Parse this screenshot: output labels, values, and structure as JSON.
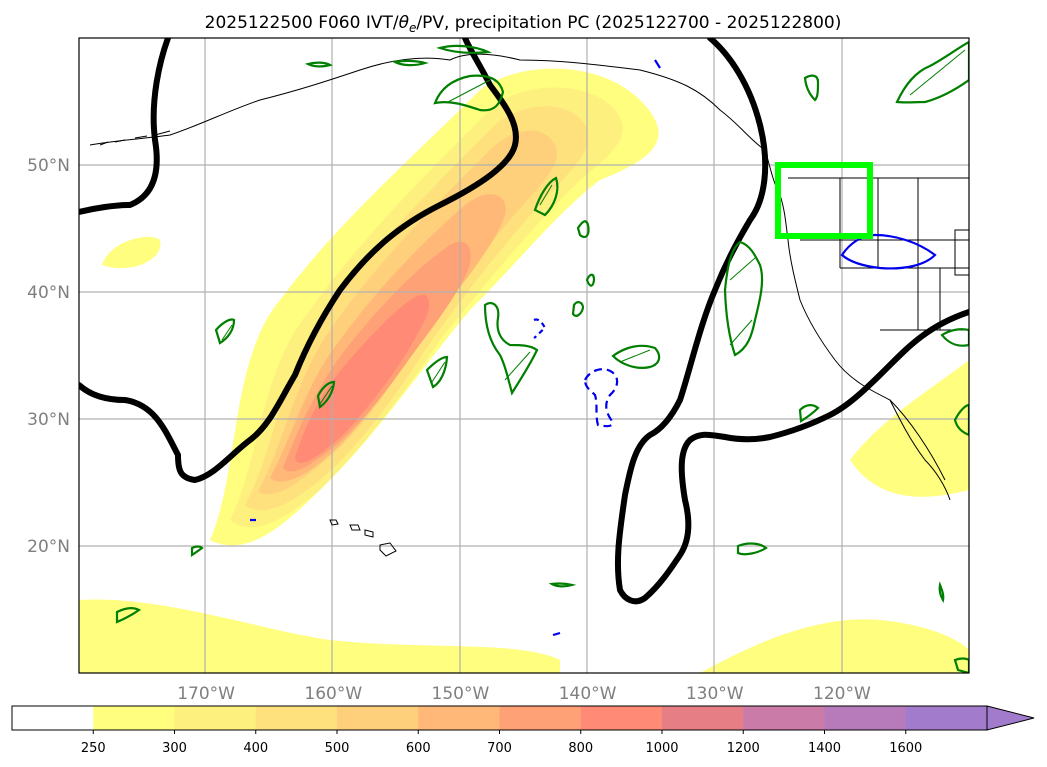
{
  "chart_data": {
    "type": "map",
    "title_parts": {
      "prefix": "2025122500 F060 IVT/",
      "theta": "θ",
      "sub": "e",
      "suffix": "/PV, precipitation PC (2025122700 - 2025122800)"
    },
    "x_ticks": [
      "170°W",
      "160°W",
      "150°W",
      "140°W",
      "130°W",
      "120°W"
    ],
    "x_tick_values": [
      -170,
      -160,
      -150,
      -140,
      -130,
      -120
    ],
    "y_ticks": [
      "20°N",
      "30°N",
      "40°N",
      "50°N"
    ],
    "y_tick_values": [
      20,
      30,
      40,
      50
    ],
    "xlim": [
      -180,
      -110
    ],
    "ylim": [
      10,
      60
    ],
    "grid": true,
    "colorbar": {
      "ticks": [
        "250",
        "300",
        "400",
        "500",
        "600",
        "700",
        "800",
        "1000",
        "1200",
        "1400",
        "1600"
      ],
      "colors": [
        "#ffffff",
        "#fffe7e",
        "#fef07f",
        "#fee07d",
        "#ffd07b",
        "#ffb878",
        "#ffa176",
        "#ff8a75",
        "#e57e85",
        "#cb7ba8",
        "#b77bbc",
        "#a37bcc"
      ],
      "extend": "max"
    },
    "ivt_shading_colors": [
      "#fffe7e",
      "#fef07f",
      "#fee07d",
      "#ffd07b",
      "#ffb878",
      "#ffa176",
      "#ff8a75"
    ],
    "pv_contour_color": "#000000",
    "precip_contour_color": "#007f00",
    "theta_contour_color": "#0000ee",
    "box_color": "#00ff00",
    "box_lon": [
      -125,
      -118
    ],
    "box_lat": [
      44.5,
      50
    ]
  }
}
